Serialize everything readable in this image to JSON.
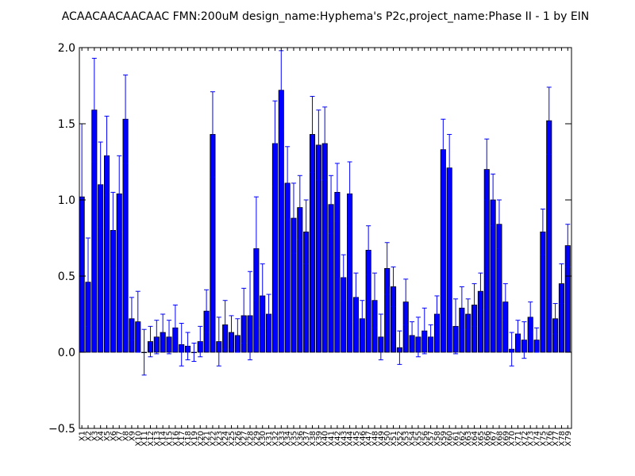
{
  "chart_data": {
    "type": "bar",
    "title": "ACAACAACAACAAC  FMN:200uM  design_name:Hyphema's P2c,project_name:Phase II - 1 by EIN",
    "xlabel": "",
    "ylabel": "",
    "ylim": [
      -0.5,
      2.0
    ],
    "yticks": [
      -0.5,
      0.0,
      0.5,
      1.0,
      1.5,
      2.0
    ],
    "ytick_labels": [
      "−0.5",
      "0.0",
      "0.5",
      "1.0",
      "1.5",
      "2.0"
    ],
    "grid": false,
    "bar_color": "#0000ff",
    "error_color": "#0000ff",
    "categories": [
      "X1",
      "X2",
      "X3",
      "X4",
      "X5",
      "X6",
      "X7",
      "X8",
      "X9",
      "X10",
      "X11",
      "X12",
      "X13",
      "X14",
      "X15",
      "X16",
      "X17",
      "X18",
      "X19",
      "X20",
      "X21",
      "X22",
      "X23",
      "X24",
      "X25",
      "X26",
      "X27",
      "X28",
      "X29",
      "X30",
      "X31",
      "X32",
      "X33",
      "X34",
      "X35",
      "X36",
      "X37",
      "X38",
      "X39",
      "X40",
      "X41",
      "X42",
      "X43",
      "X44",
      "X45",
      "X46",
      "X47",
      "X48",
      "X49",
      "X50",
      "X51",
      "X52",
      "X53",
      "X54",
      "X55",
      "X56",
      "X57",
      "X58",
      "X59",
      "X60",
      "X61",
      "X62",
      "X63",
      "X64",
      "X65",
      "X66",
      "X67",
      "X68",
      "X69",
      "X70",
      "X71",
      "X72",
      "X73",
      "X74",
      "X75",
      "X76",
      "X77",
      "X78",
      "X79"
    ],
    "values": [
      1.02,
      0.46,
      1.59,
      1.1,
      1.29,
      0.8,
      1.04,
      1.53,
      0.22,
      0.2,
      0.0,
      0.07,
      0.1,
      0.13,
      0.1,
      0.16,
      0.05,
      0.04,
      0.0,
      0.07,
      0.27,
      1.43,
      0.07,
      0.18,
      0.13,
      0.11,
      0.24,
      0.24,
      0.68,
      0.37,
      0.25,
      1.37,
      1.72,
      1.11,
      0.88,
      0.95,
      0.79,
      1.43,
      1.36,
      1.37,
      0.97,
      1.05,
      0.49,
      1.04,
      0.36,
      0.22,
      0.67,
      0.34,
      0.1,
      0.55,
      0.43,
      0.03,
      0.33,
      0.11,
      0.1,
      0.14,
      0.1,
      0.25,
      1.33,
      1.21,
      0.17,
      0.29,
      0.25,
      0.31,
      0.4,
      1.2,
      1.0,
      0.84,
      0.33,
      0.02,
      0.12,
      0.08,
      0.23,
      0.08,
      0.79,
      1.52,
      0.22,
      0.45,
      0.7
    ],
    "errors": [
      0.48,
      0.29,
      0.34,
      0.28,
      0.26,
      0.25,
      0.25,
      0.29,
      0.14,
      0.2,
      0.15,
      0.1,
      0.11,
      0.12,
      0.11,
      0.15,
      0.14,
      0.09,
      0.06,
      0.1,
      0.14,
      0.28,
      0.16,
      0.16,
      0.11,
      0.11,
      0.18,
      0.29,
      0.34,
      0.21,
      0.13,
      0.28,
      0.26,
      0.24,
      0.23,
      0.21,
      0.21,
      0.25,
      0.23,
      0.24,
      0.19,
      0.19,
      0.15,
      0.21,
      0.16,
      0.12,
      0.16,
      0.18,
      0.15,
      0.17,
      0.13,
      0.11,
      0.15,
      0.09,
      0.13,
      0.15,
      0.08,
      0.12,
      0.2,
      0.22,
      0.18,
      0.14,
      0.1,
      0.14,
      0.12,
      0.2,
      0.17,
      0.16,
      0.12,
      0.11,
      0.09,
      0.12,
      0.1,
      0.08,
      0.15,
      0.22,
      0.1,
      0.13,
      0.14
    ]
  }
}
